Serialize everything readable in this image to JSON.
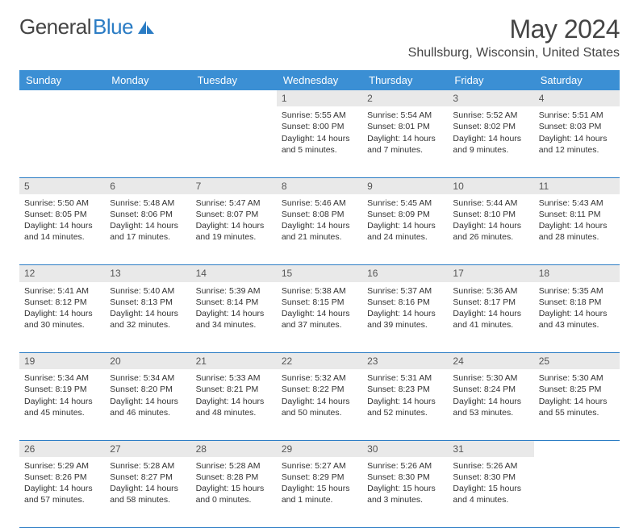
{
  "logo": {
    "part1": "General",
    "part2": "Blue"
  },
  "title": "May 2024",
  "location": "Shullsburg, Wisconsin, United States",
  "colors": {
    "header_bg": "#3b8fd4",
    "header_text": "#ffffff",
    "daynum_bg": "#e9e9e9",
    "border": "#2b7cc4",
    "text": "#333333",
    "logo_gray": "#444444",
    "logo_blue": "#2b7cc4"
  },
  "weekdays": [
    "Sunday",
    "Monday",
    "Tuesday",
    "Wednesday",
    "Thursday",
    "Friday",
    "Saturday"
  ],
  "weeks": [
    {
      "nums": [
        "",
        "",
        "",
        "1",
        "2",
        "3",
        "4"
      ],
      "cells": [
        null,
        null,
        null,
        {
          "sunrise": "5:55 AM",
          "sunset": "8:00 PM",
          "day_h": 14,
          "day_m": 5
        },
        {
          "sunrise": "5:54 AM",
          "sunset": "8:01 PM",
          "day_h": 14,
          "day_m": 7
        },
        {
          "sunrise": "5:52 AM",
          "sunset": "8:02 PM",
          "day_h": 14,
          "day_m": 9
        },
        {
          "sunrise": "5:51 AM",
          "sunset": "8:03 PM",
          "day_h": 14,
          "day_m": 12
        }
      ]
    },
    {
      "nums": [
        "5",
        "6",
        "7",
        "8",
        "9",
        "10",
        "11"
      ],
      "cells": [
        {
          "sunrise": "5:50 AM",
          "sunset": "8:05 PM",
          "day_h": 14,
          "day_m": 14
        },
        {
          "sunrise": "5:48 AM",
          "sunset": "8:06 PM",
          "day_h": 14,
          "day_m": 17
        },
        {
          "sunrise": "5:47 AM",
          "sunset": "8:07 PM",
          "day_h": 14,
          "day_m": 19
        },
        {
          "sunrise": "5:46 AM",
          "sunset": "8:08 PM",
          "day_h": 14,
          "day_m": 21
        },
        {
          "sunrise": "5:45 AM",
          "sunset": "8:09 PM",
          "day_h": 14,
          "day_m": 24
        },
        {
          "sunrise": "5:44 AM",
          "sunset": "8:10 PM",
          "day_h": 14,
          "day_m": 26
        },
        {
          "sunrise": "5:43 AM",
          "sunset": "8:11 PM",
          "day_h": 14,
          "day_m": 28
        }
      ]
    },
    {
      "nums": [
        "12",
        "13",
        "14",
        "15",
        "16",
        "17",
        "18"
      ],
      "cells": [
        {
          "sunrise": "5:41 AM",
          "sunset": "8:12 PM",
          "day_h": 14,
          "day_m": 30
        },
        {
          "sunrise": "5:40 AM",
          "sunset": "8:13 PM",
          "day_h": 14,
          "day_m": 32
        },
        {
          "sunrise": "5:39 AM",
          "sunset": "8:14 PM",
          "day_h": 14,
          "day_m": 34
        },
        {
          "sunrise": "5:38 AM",
          "sunset": "8:15 PM",
          "day_h": 14,
          "day_m": 37
        },
        {
          "sunrise": "5:37 AM",
          "sunset": "8:16 PM",
          "day_h": 14,
          "day_m": 39
        },
        {
          "sunrise": "5:36 AM",
          "sunset": "8:17 PM",
          "day_h": 14,
          "day_m": 41
        },
        {
          "sunrise": "5:35 AM",
          "sunset": "8:18 PM",
          "day_h": 14,
          "day_m": 43
        }
      ]
    },
    {
      "nums": [
        "19",
        "20",
        "21",
        "22",
        "23",
        "24",
        "25"
      ],
      "cells": [
        {
          "sunrise": "5:34 AM",
          "sunset": "8:19 PM",
          "day_h": 14,
          "day_m": 45
        },
        {
          "sunrise": "5:34 AM",
          "sunset": "8:20 PM",
          "day_h": 14,
          "day_m": 46
        },
        {
          "sunrise": "5:33 AM",
          "sunset": "8:21 PM",
          "day_h": 14,
          "day_m": 48
        },
        {
          "sunrise": "5:32 AM",
          "sunset": "8:22 PM",
          "day_h": 14,
          "day_m": 50
        },
        {
          "sunrise": "5:31 AM",
          "sunset": "8:23 PM",
          "day_h": 14,
          "day_m": 52
        },
        {
          "sunrise": "5:30 AM",
          "sunset": "8:24 PM",
          "day_h": 14,
          "day_m": 53
        },
        {
          "sunrise": "5:30 AM",
          "sunset": "8:25 PM",
          "day_h": 14,
          "day_m": 55
        }
      ]
    },
    {
      "nums": [
        "26",
        "27",
        "28",
        "29",
        "30",
        "31",
        ""
      ],
      "cells": [
        {
          "sunrise": "5:29 AM",
          "sunset": "8:26 PM",
          "day_h": 14,
          "day_m": 57
        },
        {
          "sunrise": "5:28 AM",
          "sunset": "8:27 PM",
          "day_h": 14,
          "day_m": 58
        },
        {
          "sunrise": "5:28 AM",
          "sunset": "8:28 PM",
          "day_h": 15,
          "day_m": 0
        },
        {
          "sunrise": "5:27 AM",
          "sunset": "8:29 PM",
          "day_h": 15,
          "day_m": 1
        },
        {
          "sunrise": "5:26 AM",
          "sunset": "8:30 PM",
          "day_h": 15,
          "day_m": 3
        },
        {
          "sunrise": "5:26 AM",
          "sunset": "8:30 PM",
          "day_h": 15,
          "day_m": 4
        },
        null
      ]
    }
  ],
  "labels": {
    "sunrise": "Sunrise:",
    "sunset": "Sunset:",
    "daylight": "Daylight:",
    "hours": "hours",
    "and": "and",
    "minutes": "minutes.",
    "minute": "minute."
  }
}
